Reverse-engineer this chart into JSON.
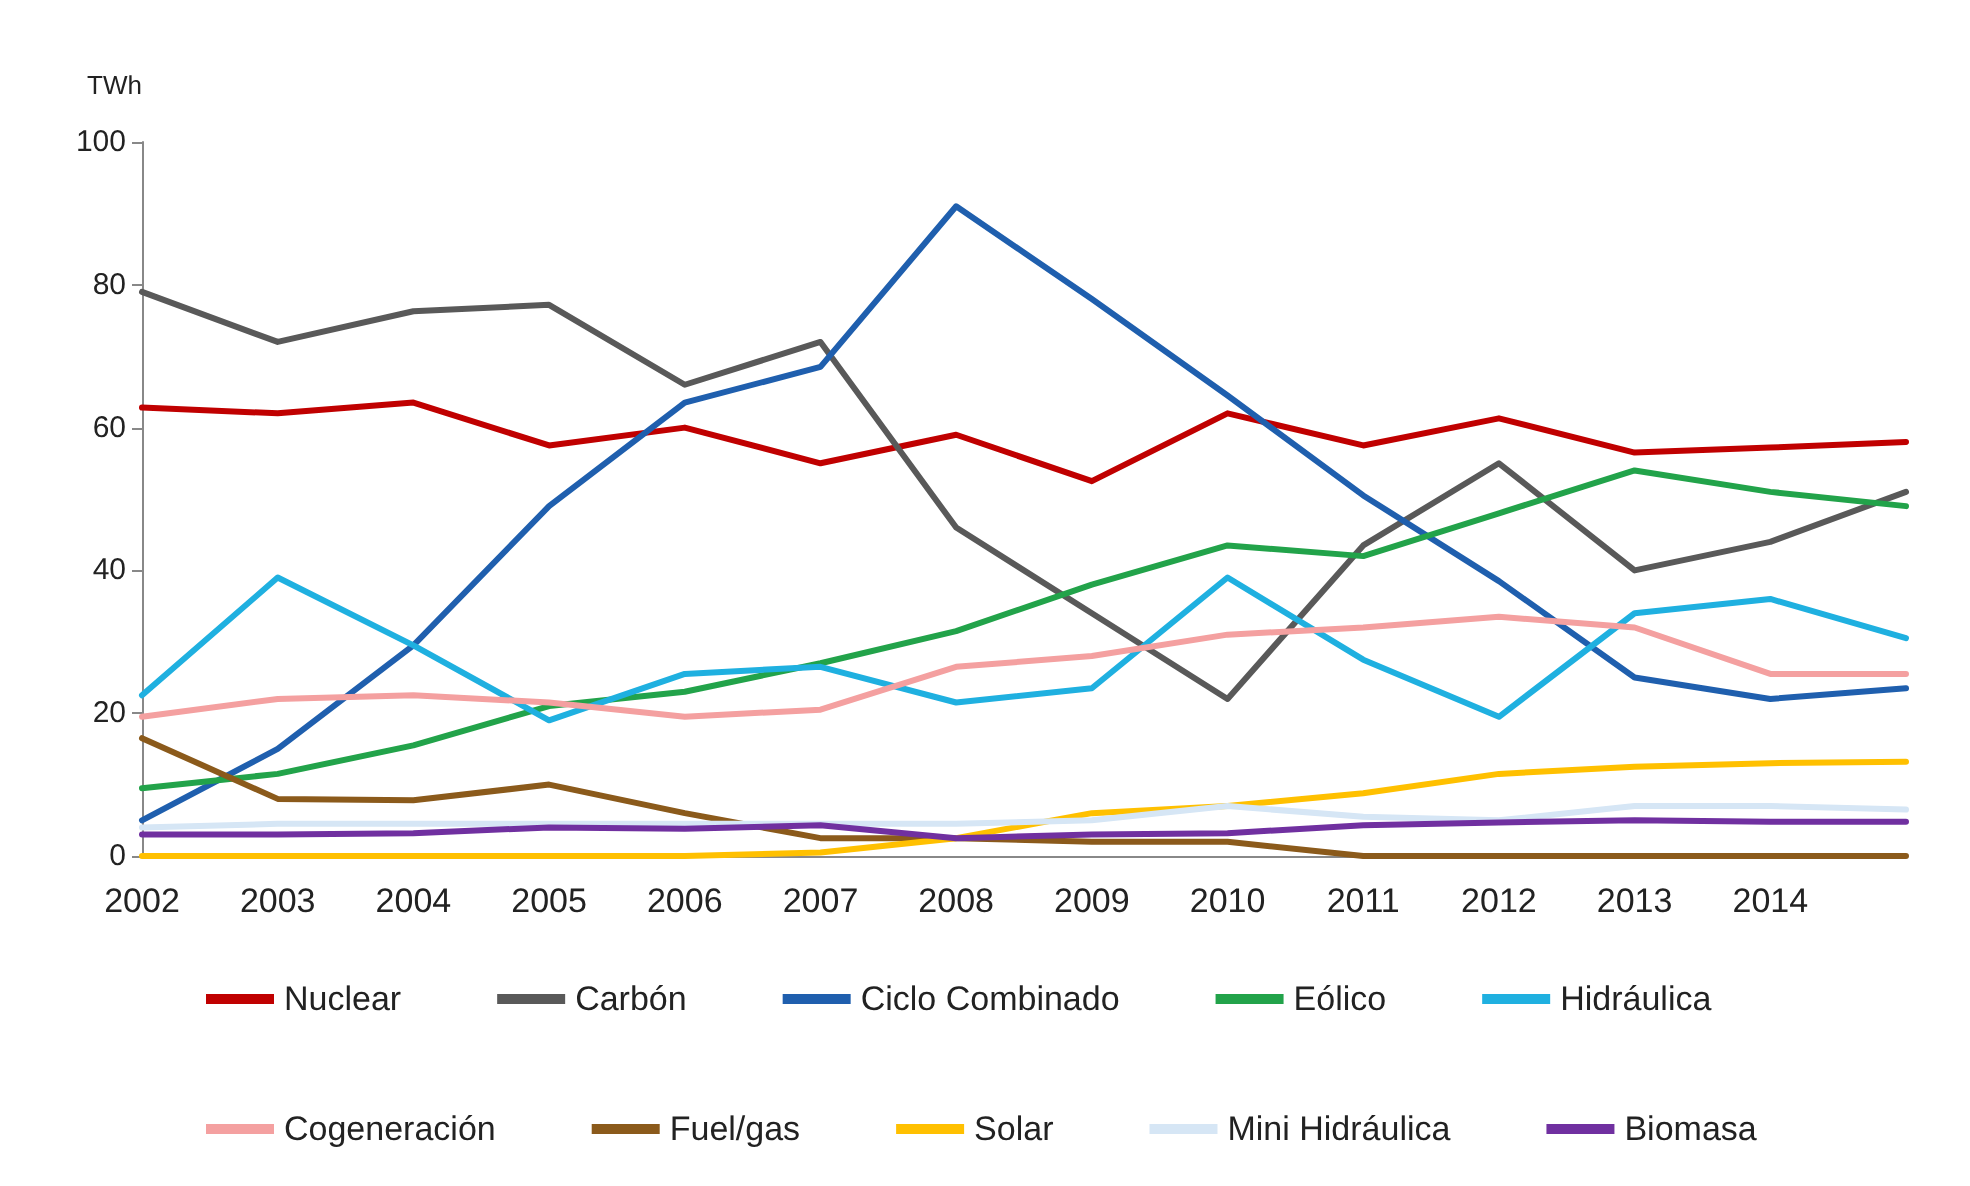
{
  "chart_data": {
    "type": "line",
    "ylabel": "TWh",
    "categories": [
      "2002",
      "2003",
      "2004",
      "2005",
      "2006",
      "2007",
      "2008",
      "2009",
      "2010",
      "2011",
      "2012",
      "2013",
      "2014",
      null
    ],
    "ylim": [
      0,
      100
    ],
    "yticks": [
      0,
      20,
      40,
      60,
      80,
      100
    ],
    "grid": false,
    "legend": "bottom",
    "marker": "none",
    "line_style": "solid",
    "series": [
      {
        "name": "Nuclear",
        "color": "#c00000",
        "values": [
          62.8,
          62,
          63.5,
          57.5,
          60,
          55,
          59,
          52.5,
          62,
          57.5,
          61.3,
          56.5,
          57.2,
          58
        ]
      },
      {
        "name": "Carbón",
        "color": "#595959",
        "values": [
          79,
          72,
          76.3,
          77.2,
          66,
          72,
          46,
          34,
          22,
          43.5,
          55,
          40,
          44,
          51
        ]
      },
      {
        "name": "Ciclo Combinado",
        "color": "#1f5fae",
        "values": [
          5,
          15,
          29.5,
          49,
          63.5,
          68.5,
          91,
          78,
          64.5,
          50.5,
          38.5,
          25,
          22,
          23.5
        ]
      },
      {
        "name": "Eólico",
        "color": "#22a34a",
        "values": [
          9.5,
          11.5,
          15.5,
          21,
          23,
          27,
          31.5,
          38,
          43.5,
          42,
          48,
          54,
          51,
          49
        ]
      },
      {
        "name": "Hidráulica",
        "color": "#1fb0e0",
        "values": [
          22.5,
          39,
          29.5,
          19,
          25.5,
          26.5,
          21.5,
          23.5,
          39,
          27.5,
          19.5,
          34,
          36,
          30.5
        ]
      },
      {
        "name": "Cogeneración",
        "color": "#f4a0a0",
        "values": [
          19.5,
          22,
          22.5,
          21.5,
          19.5,
          20.5,
          26.5,
          28,
          31,
          32,
          33.5,
          32,
          25.5,
          25.5
        ]
      },
      {
        "name": "Fuel/gas",
        "color": "#8b5a1b",
        "values": [
          16.5,
          8,
          7.8,
          10,
          6,
          2.5,
          2.5,
          2,
          2,
          0,
          0,
          0,
          0,
          0
        ]
      },
      {
        "name": "Solar",
        "color": "#ffc000",
        "values": [
          0,
          0,
          0,
          0,
          0,
          0.5,
          2.5,
          6,
          7,
          8.8,
          11.5,
          12.5,
          13,
          13.2
        ]
      },
      {
        "name": "Mini Hidráulica",
        "color": "#d6e6f5",
        "values": [
          4,
          4.5,
          4.5,
          4.5,
          4.5,
          4.5,
          4.5,
          5,
          7,
          5.5,
          5,
          7,
          7,
          6.5
        ]
      },
      {
        "name": "Biomasa",
        "color": "#7030a0",
        "values": [
          3,
          3,
          3.2,
          4,
          3.8,
          4.3,
          2.5,
          3,
          3.2,
          4.3,
          4.7,
          5,
          4.8,
          4.8
        ]
      }
    ]
  }
}
